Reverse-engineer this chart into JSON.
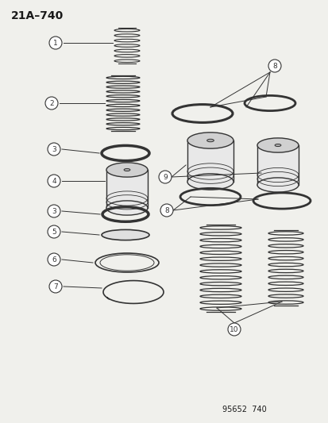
{
  "title": "21A–740",
  "footer": "95652  740",
  "background_color": "#f0f0ec",
  "line_color": "#333333",
  "dark_color": "#1a1a1a"
}
